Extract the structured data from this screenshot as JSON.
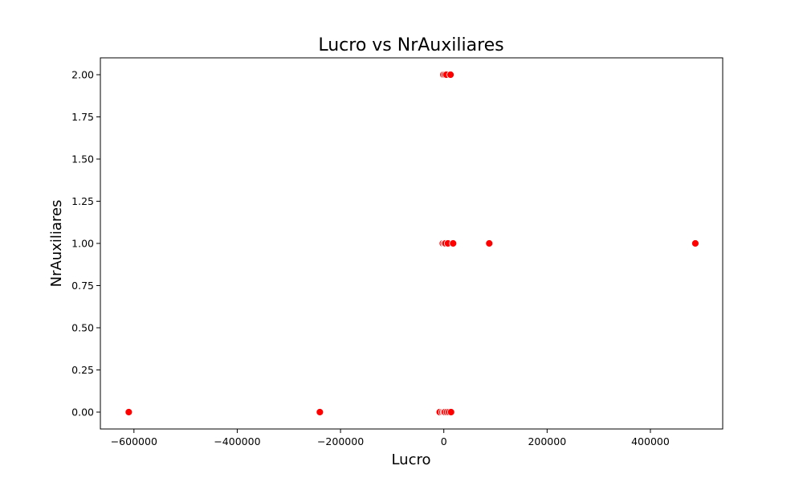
{
  "chart_data": {
    "type": "scatter",
    "title": "Lucro vs NrAuxiliares",
    "xlabel": "Lucro",
    "ylabel": "NrAuxiliares",
    "xlim": [
      -665000,
      540000
    ],
    "ylim": [
      -0.1,
      2.1
    ],
    "x_ticks": [
      {
        "value": -600000,
        "label": "−600000"
      },
      {
        "value": -400000,
        "label": "−400000"
      },
      {
        "value": -200000,
        "label": "−200000"
      },
      {
        "value": 0,
        "label": "0"
      },
      {
        "value": 200000,
        "label": "200000"
      },
      {
        "value": 400000,
        "label": "400000"
      }
    ],
    "y_ticks": [
      {
        "value": 0.0,
        "label": "0.00"
      },
      {
        "value": 0.25,
        "label": "0.25"
      },
      {
        "value": 0.5,
        "label": "0.50"
      },
      {
        "value": 0.75,
        "label": "0.75"
      },
      {
        "value": 1.0,
        "label": "1.00"
      },
      {
        "value": 1.25,
        "label": "1.25"
      },
      {
        "value": 1.5,
        "label": "1.50"
      },
      {
        "value": 1.75,
        "label": "1.75"
      },
      {
        "value": 2.0,
        "label": "2.00"
      }
    ],
    "grid": false,
    "marker_color": "#ff0000",
    "points": [
      {
        "x": -610000,
        "y": 0
      },
      {
        "x": -240000,
        "y": 0
      },
      {
        "x": -8000,
        "y": 0
      },
      {
        "x": -3000,
        "y": 0
      },
      {
        "x": 0,
        "y": 0
      },
      {
        "x": 2000,
        "y": 0
      },
      {
        "x": 6000,
        "y": 0
      },
      {
        "x": 10000,
        "y": 0
      },
      {
        "x": 14000,
        "y": 0
      },
      {
        "x": -2000,
        "y": 1
      },
      {
        "x": 1000,
        "y": 1
      },
      {
        "x": 3000,
        "y": 1
      },
      {
        "x": 8000,
        "y": 1
      },
      {
        "x": 18000,
        "y": 1
      },
      {
        "x": 88000,
        "y": 1
      },
      {
        "x": 487000,
        "y": 1
      },
      {
        "x": -1000,
        "y": 2
      },
      {
        "x": 2000,
        "y": 2
      },
      {
        "x": 5000,
        "y": 2
      },
      {
        "x": 13000,
        "y": 2
      }
    ]
  }
}
